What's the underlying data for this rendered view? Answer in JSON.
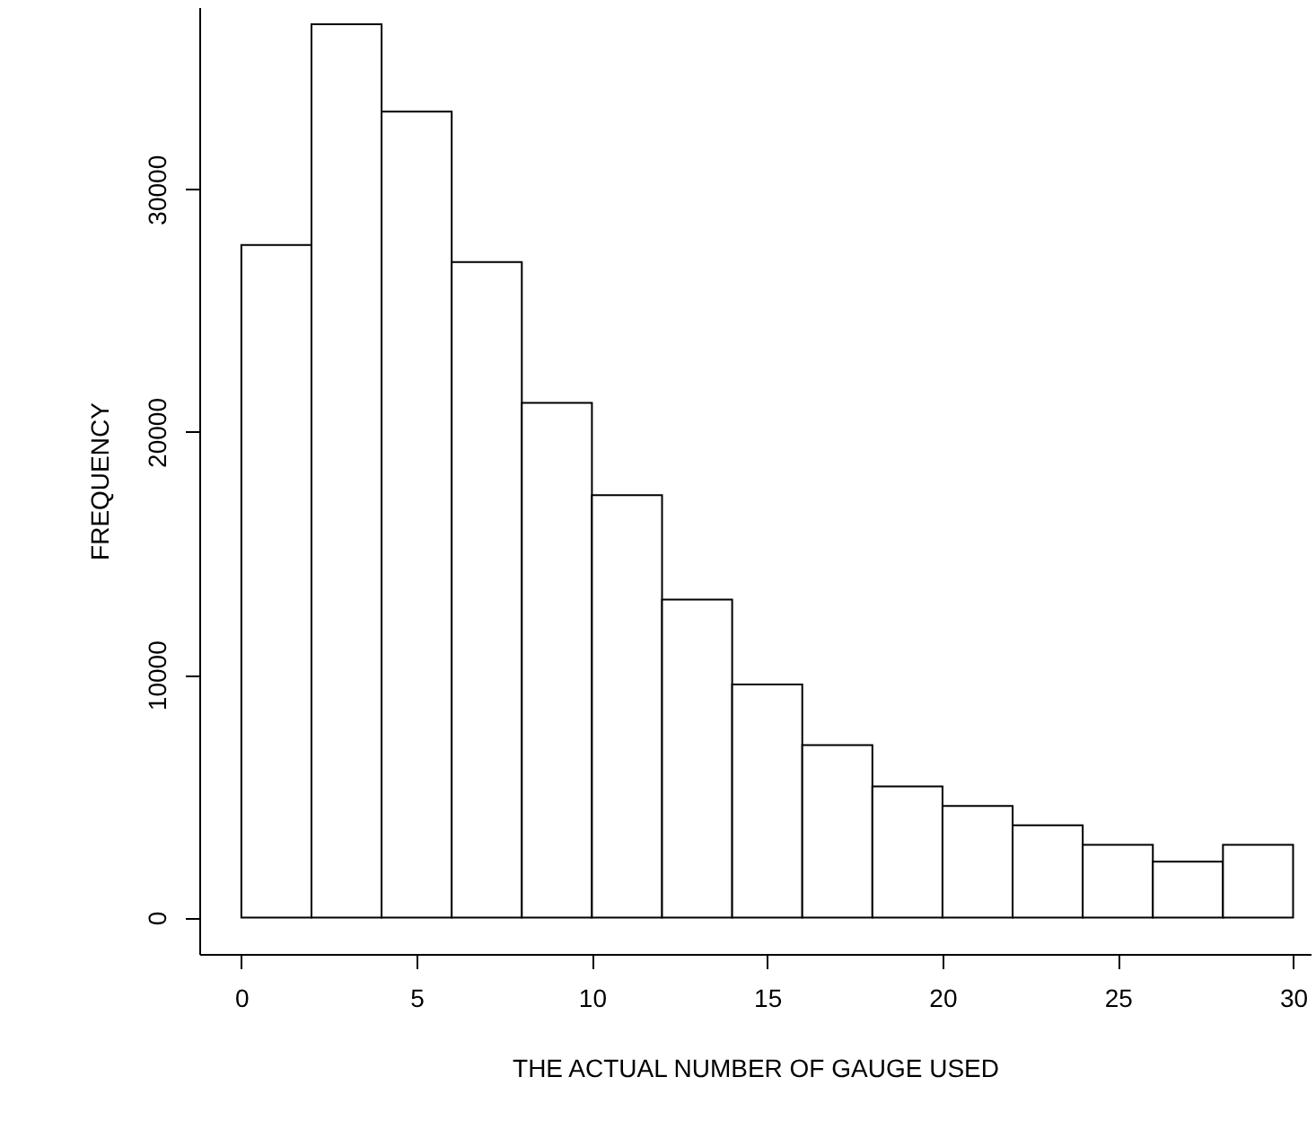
{
  "chart_data": {
    "type": "histogram",
    "xlabel": "THE ACTUAL NUMBER OF GAUGE USED",
    "ylabel": "FREQUENCY",
    "bins": [
      0,
      2,
      4,
      6,
      8,
      10,
      12,
      14,
      16,
      18,
      20,
      22,
      24,
      26,
      28,
      30
    ],
    "values": [
      27700,
      36800,
      33200,
      27000,
      21200,
      17400,
      13100,
      9600,
      7100,
      5400,
      4600,
      3800,
      3000,
      2300,
      3000
    ],
    "color": "#ffffff",
    "xlim": [
      -1.2,
      30.5
    ],
    "ylim": [
      -1500,
      37500
    ],
    "xticks": [
      0,
      5,
      10,
      15,
      20,
      25,
      30
    ],
    "yticks": [
      0,
      10000,
      20000,
      30000
    ],
    "grid": false
  }
}
